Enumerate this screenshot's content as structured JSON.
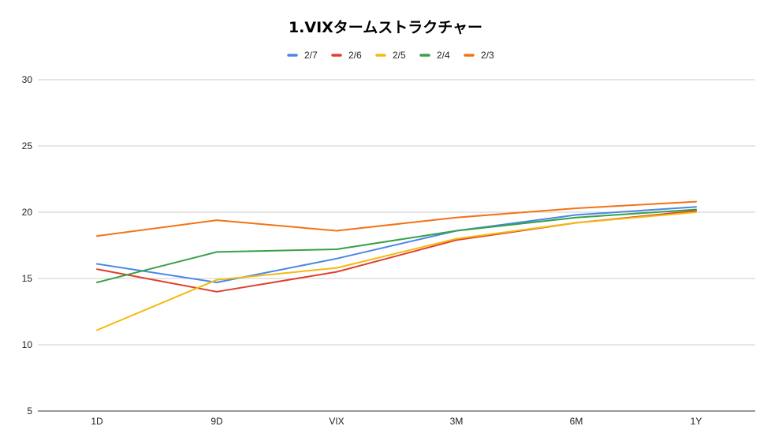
{
  "chart_data": {
    "type": "line",
    "title": "1.VIXタームストラクチャー",
    "xlabel": "",
    "ylabel": "",
    "categories": [
      "1D",
      "9D",
      "VIX",
      "3M",
      "6M",
      "1Y"
    ],
    "ylim": [
      5,
      30
    ],
    "yticks": [
      "5",
      "10",
      "15",
      "20",
      "25",
      "30"
    ],
    "grid": true,
    "legend_position": "top",
    "series": [
      {
        "name": "2/7",
        "color": "#4a86e8",
        "values": [
          16.1,
          14.7,
          16.5,
          18.6,
          19.8,
          20.4
        ]
      },
      {
        "name": "2/6",
        "color": "#e0402e",
        "values": [
          15.7,
          14.0,
          15.5,
          17.9,
          19.2,
          20.1
        ]
      },
      {
        "name": "2/5",
        "color": "#f4b911",
        "values": [
          11.1,
          14.9,
          15.8,
          18.0,
          19.2,
          20.0
        ]
      },
      {
        "name": "2/4",
        "color": "#38a046",
        "values": [
          14.7,
          17.0,
          17.2,
          18.6,
          19.6,
          20.2
        ]
      },
      {
        "name": "2/3",
        "color": "#f47216",
        "values": [
          18.2,
          19.4,
          18.6,
          19.6,
          20.3,
          20.8
        ]
      }
    ]
  }
}
